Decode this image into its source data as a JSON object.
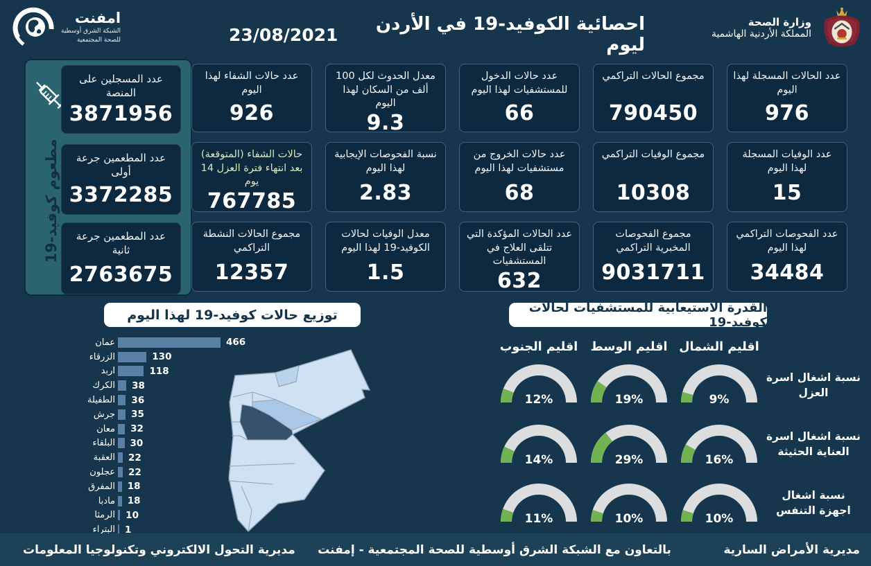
{
  "header": {
    "title": "احصائية الكوفيد-19 في الأردن ليوم",
    "date": "23/08/2021",
    "emphnet": {
      "name": "امفنت",
      "line1": "الشبكة الشرق أوسطية",
      "line2": "للصحة المجتمعية"
    },
    "ministry": {
      "line1": "وزارة الصحة",
      "line2": "المملكة الأردنية الهاشمية"
    }
  },
  "vaccination_panel": {
    "vertical_label": "مطعوم كوفيد-19",
    "cards": [
      {
        "label": "عدد المسجلين على المنصة",
        "value": "3871956"
      },
      {
        "label": "عدد المطعمين جرعة أولى",
        "value": "3372285"
      },
      {
        "label": "عدد المطعمين جرعة ثانية",
        "value": "2763675"
      }
    ]
  },
  "stat_cards": [
    {
      "label": "عدد الحالات المسجلة لهذا اليوم",
      "value": "976"
    },
    {
      "label": "مجموع الحالات التراكمي",
      "value": "790450"
    },
    {
      "label": "عدد حالات الدخول للمستشفيات لهذا اليوم",
      "value": "66"
    },
    {
      "label": "معدل الحدوث لكل 100 ألف من السكان لهذا اليوم",
      "value": "9.3"
    },
    {
      "label": "عدد حالات الشفاء لهذا اليوم",
      "value": "926"
    },
    {
      "label": "عدد الوفيات المسجلة لهذا اليوم",
      "value": "15"
    },
    {
      "label": "مجموع الوفيات التراكمي",
      "value": "10308"
    },
    {
      "label": "عدد حالات الخروج من مستشفيات لهذا اليوم",
      "value": "68"
    },
    {
      "label": "نسبة الفحوصات الإيجابية لهذا اليوم",
      "value": "2.83"
    },
    {
      "label": "حالات الشفاء (المتوقعة) بعد انتهاء فترة العزل 14 يوم",
      "value": "767785",
      "label_color": "#d9e8c0"
    },
    {
      "label": "عدد الفحوصات التراكمي لهذا اليوم",
      "value": "34484"
    },
    {
      "label": "مجموع الفحوصات المخبرية التراكمي",
      "value": "9031711"
    },
    {
      "label": "عدد الحالات المؤكدة التي تتلقى العلاج في المستشفيات",
      "value": "632"
    },
    {
      "label": "معدل الوفيات لحالات الكوفيد-19 لهذا اليوم",
      "value": "1.5"
    },
    {
      "label": "مجموع الحالات النشطة التراكمي",
      "value": "12357"
    }
  ],
  "chart_data": [
    {
      "type": "bar",
      "title": "توزيع حالات كوفيد-19 لهذا اليوم",
      "orientation": "horizontal",
      "categories": [
        "عمان",
        "الزرقاء",
        "اربد",
        "الكرك",
        "الطفيلة",
        "جرش",
        "معان",
        "البلقاء",
        "العقبة",
        "عجلون",
        "المفرق",
        "مادبا",
        "الرمثا",
        "البتراء"
      ],
      "values": [
        466,
        130,
        118,
        38,
        36,
        35,
        32,
        30,
        22,
        22,
        18,
        18,
        10,
        1
      ],
      "bar_color": "#5b80a5",
      "xlim": [
        0,
        500
      ]
    },
    {
      "type": "gauge-grid",
      "title": "القدرة الاستيعابية للمستشفيات لحالات كوفيد-19",
      "columns": [
        "اقليم الشمال",
        "اقليم الوسط",
        "اقليم الجنوب"
      ],
      "rows": [
        "نسبة اشغال اسرة العزل",
        "نسبة اشغال اسرة العناية الحثيثة",
        "نسبة اشغال اجهزة التنفس"
      ],
      "values": [
        [
          9,
          19,
          12
        ],
        [
          16,
          29,
          14
        ],
        [
          10,
          10,
          11
        ]
      ],
      "unit": "%",
      "fill_color": "#71b252",
      "track_color": "#dcdddf"
    }
  ],
  "footer": {
    "right": "مديرية الأمراض السارية",
    "center": "بالتعاون مع الشبكة الشرق أوسطية للصحة المجتمعية - إمفنت",
    "left": "مديرية التحول الالكتروني وتكنولوجيا المعلومات"
  }
}
